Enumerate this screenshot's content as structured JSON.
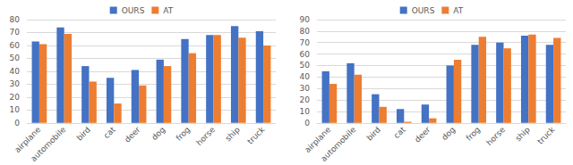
{
  "chart_data": [
    {
      "type": "bar",
      "categories": [
        "airplane",
        "automobile",
        "bird",
        "cat",
        "deer",
        "dog",
        "frog",
        "horse",
        "ship",
        "truck"
      ],
      "series": [
        {
          "name": "OURS",
          "color": "#4472c4",
          "values": [
            63,
            74,
            44,
            35,
            41,
            49,
            65,
            68,
            75,
            71
          ]
        },
        {
          "name": "AT",
          "color": "#ed7d31",
          "values": [
            61,
            69,
            32,
            15,
            29,
            44,
            54,
            68,
            66,
            60
          ]
        }
      ],
      "ylim": [
        0,
        80
      ],
      "yticks": [
        0,
        10,
        20,
        30,
        40,
        50,
        60,
        70,
        80
      ],
      "grid": true,
      "legend": "top"
    },
    {
      "type": "bar",
      "categories": [
        "airplane",
        "automobile",
        "bird",
        "cat",
        "deer",
        "dog",
        "frog",
        "horse",
        "ship",
        "truck"
      ],
      "series": [
        {
          "name": "OURS",
          "color": "#4472c4",
          "values": [
            45,
            52,
            25,
            12,
            16,
            50,
            68,
            70,
            76,
            68
          ]
        },
        {
          "name": "AT",
          "color": "#ed7d31",
          "values": [
            34,
            42,
            14,
            1,
            4,
            55,
            75,
            65,
            77,
            74
          ]
        }
      ],
      "ylim": [
        0,
        90
      ],
      "yticks": [
        0,
        10,
        20,
        30,
        40,
        50,
        60,
        70,
        80,
        90
      ],
      "grid": true,
      "legend": "top"
    }
  ]
}
